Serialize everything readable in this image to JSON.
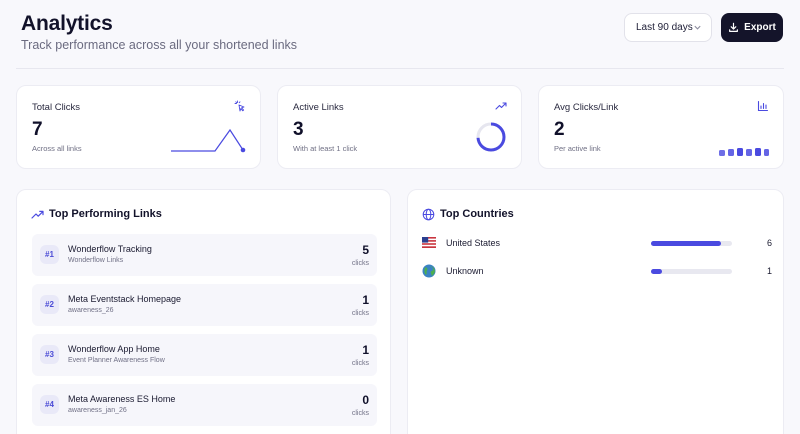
{
  "header": {
    "title": "Analytics",
    "subtitle": "Track performance across all your shortened links",
    "range_label": "Last 90 days",
    "export_label": "Export"
  },
  "stats": [
    {
      "label": "Total Clicks",
      "value": "7",
      "sub": "Across all links",
      "icon": "cursor-click-icon"
    },
    {
      "label": "Active Links",
      "value": "3",
      "sub": "With at least 1 click",
      "icon": "trending-up-icon"
    },
    {
      "label": "Avg Clicks/Link",
      "value": "2",
      "sub": "Per active link",
      "icon": "bar-chart-icon"
    }
  ],
  "top_links": {
    "title": "Top Performing Links",
    "unit": "clicks",
    "items": [
      {
        "rank": "#1",
        "title": "Wonderflow Tracking",
        "sub": "Wonderflow Links",
        "count": "5"
      },
      {
        "rank": "#2",
        "title": "Meta Eventstack Homepage",
        "sub": "awareness_26",
        "count": "1"
      },
      {
        "rank": "#3",
        "title": "Wonderflow App Home",
        "sub": "Event Planner Awareness Flow",
        "count": "1"
      },
      {
        "rank": "#4",
        "title": "Meta Awareness ES Home",
        "sub": "awareness_jan_26",
        "count": "0"
      }
    ]
  },
  "top_countries": {
    "title": "Top Countries",
    "items": [
      {
        "name": "United States",
        "count": "6",
        "share": 0.86
      },
      {
        "name": "Unknown",
        "count": "1",
        "share": 0.14
      }
    ]
  },
  "colors": {
    "accent": "#4a4ae0",
    "dark": "#14142a"
  }
}
